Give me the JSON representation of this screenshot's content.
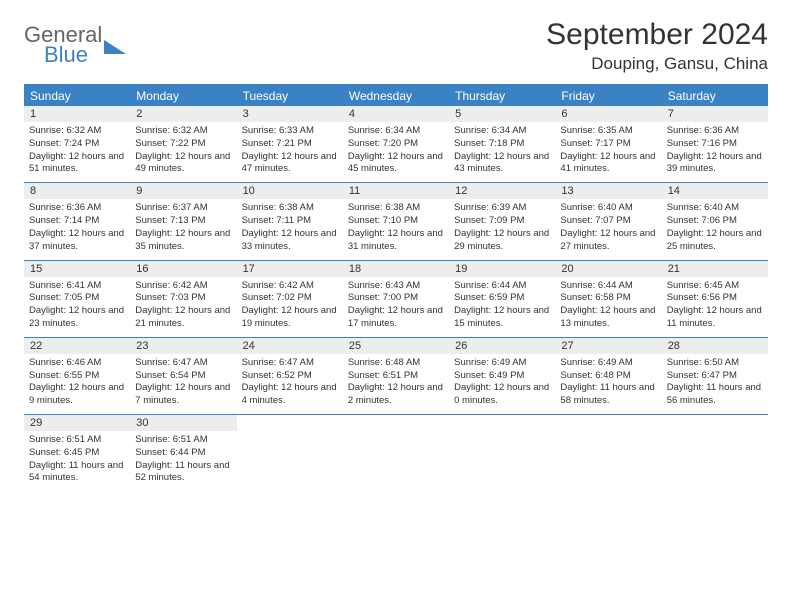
{
  "logo": {
    "text1": "General",
    "text2": "Blue"
  },
  "title": "September 2024",
  "location": "Douping, Gansu, China",
  "colors": {
    "accent": "#3b82c4",
    "header_gray": "#eceded",
    "text": "#333333",
    "background": "#ffffff"
  },
  "typography": {
    "title_fontsize": 30,
    "location_fontsize": 17,
    "weekday_fontsize": 12,
    "daynum_fontsize": 11,
    "body_fontsize": 9.5
  },
  "weekdays": [
    "Sunday",
    "Monday",
    "Tuesday",
    "Wednesday",
    "Thursday",
    "Friday",
    "Saturday"
  ],
  "weeks": [
    [
      {
        "n": "1",
        "sr": "Sunrise: 6:32 AM",
        "ss": "Sunset: 7:24 PM",
        "dl": "Daylight: 12 hours and 51 minutes."
      },
      {
        "n": "2",
        "sr": "Sunrise: 6:32 AM",
        "ss": "Sunset: 7:22 PM",
        "dl": "Daylight: 12 hours and 49 minutes."
      },
      {
        "n": "3",
        "sr": "Sunrise: 6:33 AM",
        "ss": "Sunset: 7:21 PM",
        "dl": "Daylight: 12 hours and 47 minutes."
      },
      {
        "n": "4",
        "sr": "Sunrise: 6:34 AM",
        "ss": "Sunset: 7:20 PM",
        "dl": "Daylight: 12 hours and 45 minutes."
      },
      {
        "n": "5",
        "sr": "Sunrise: 6:34 AM",
        "ss": "Sunset: 7:18 PM",
        "dl": "Daylight: 12 hours and 43 minutes."
      },
      {
        "n": "6",
        "sr": "Sunrise: 6:35 AM",
        "ss": "Sunset: 7:17 PM",
        "dl": "Daylight: 12 hours and 41 minutes."
      },
      {
        "n": "7",
        "sr": "Sunrise: 6:36 AM",
        "ss": "Sunset: 7:16 PM",
        "dl": "Daylight: 12 hours and 39 minutes."
      }
    ],
    [
      {
        "n": "8",
        "sr": "Sunrise: 6:36 AM",
        "ss": "Sunset: 7:14 PM",
        "dl": "Daylight: 12 hours and 37 minutes."
      },
      {
        "n": "9",
        "sr": "Sunrise: 6:37 AM",
        "ss": "Sunset: 7:13 PM",
        "dl": "Daylight: 12 hours and 35 minutes."
      },
      {
        "n": "10",
        "sr": "Sunrise: 6:38 AM",
        "ss": "Sunset: 7:11 PM",
        "dl": "Daylight: 12 hours and 33 minutes."
      },
      {
        "n": "11",
        "sr": "Sunrise: 6:38 AM",
        "ss": "Sunset: 7:10 PM",
        "dl": "Daylight: 12 hours and 31 minutes."
      },
      {
        "n": "12",
        "sr": "Sunrise: 6:39 AM",
        "ss": "Sunset: 7:09 PM",
        "dl": "Daylight: 12 hours and 29 minutes."
      },
      {
        "n": "13",
        "sr": "Sunrise: 6:40 AM",
        "ss": "Sunset: 7:07 PM",
        "dl": "Daylight: 12 hours and 27 minutes."
      },
      {
        "n": "14",
        "sr": "Sunrise: 6:40 AM",
        "ss": "Sunset: 7:06 PM",
        "dl": "Daylight: 12 hours and 25 minutes."
      }
    ],
    [
      {
        "n": "15",
        "sr": "Sunrise: 6:41 AM",
        "ss": "Sunset: 7:05 PM",
        "dl": "Daylight: 12 hours and 23 minutes."
      },
      {
        "n": "16",
        "sr": "Sunrise: 6:42 AM",
        "ss": "Sunset: 7:03 PM",
        "dl": "Daylight: 12 hours and 21 minutes."
      },
      {
        "n": "17",
        "sr": "Sunrise: 6:42 AM",
        "ss": "Sunset: 7:02 PM",
        "dl": "Daylight: 12 hours and 19 minutes."
      },
      {
        "n": "18",
        "sr": "Sunrise: 6:43 AM",
        "ss": "Sunset: 7:00 PM",
        "dl": "Daylight: 12 hours and 17 minutes."
      },
      {
        "n": "19",
        "sr": "Sunrise: 6:44 AM",
        "ss": "Sunset: 6:59 PM",
        "dl": "Daylight: 12 hours and 15 minutes."
      },
      {
        "n": "20",
        "sr": "Sunrise: 6:44 AM",
        "ss": "Sunset: 6:58 PM",
        "dl": "Daylight: 12 hours and 13 minutes."
      },
      {
        "n": "21",
        "sr": "Sunrise: 6:45 AM",
        "ss": "Sunset: 6:56 PM",
        "dl": "Daylight: 12 hours and 11 minutes."
      }
    ],
    [
      {
        "n": "22",
        "sr": "Sunrise: 6:46 AM",
        "ss": "Sunset: 6:55 PM",
        "dl": "Daylight: 12 hours and 9 minutes."
      },
      {
        "n": "23",
        "sr": "Sunrise: 6:47 AM",
        "ss": "Sunset: 6:54 PM",
        "dl": "Daylight: 12 hours and 7 minutes."
      },
      {
        "n": "24",
        "sr": "Sunrise: 6:47 AM",
        "ss": "Sunset: 6:52 PM",
        "dl": "Daylight: 12 hours and 4 minutes."
      },
      {
        "n": "25",
        "sr": "Sunrise: 6:48 AM",
        "ss": "Sunset: 6:51 PM",
        "dl": "Daylight: 12 hours and 2 minutes."
      },
      {
        "n": "26",
        "sr": "Sunrise: 6:49 AM",
        "ss": "Sunset: 6:49 PM",
        "dl": "Daylight: 12 hours and 0 minutes."
      },
      {
        "n": "27",
        "sr": "Sunrise: 6:49 AM",
        "ss": "Sunset: 6:48 PM",
        "dl": "Daylight: 11 hours and 58 minutes."
      },
      {
        "n": "28",
        "sr": "Sunrise: 6:50 AM",
        "ss": "Sunset: 6:47 PM",
        "dl": "Daylight: 11 hours and 56 minutes."
      }
    ],
    [
      {
        "n": "29",
        "sr": "Sunrise: 6:51 AM",
        "ss": "Sunset: 6:45 PM",
        "dl": "Daylight: 11 hours and 54 minutes."
      },
      {
        "n": "30",
        "sr": "Sunrise: 6:51 AM",
        "ss": "Sunset: 6:44 PM",
        "dl": "Daylight: 11 hours and 52 minutes."
      },
      {
        "empty": true
      },
      {
        "empty": true
      },
      {
        "empty": true
      },
      {
        "empty": true
      },
      {
        "empty": true
      }
    ]
  ]
}
